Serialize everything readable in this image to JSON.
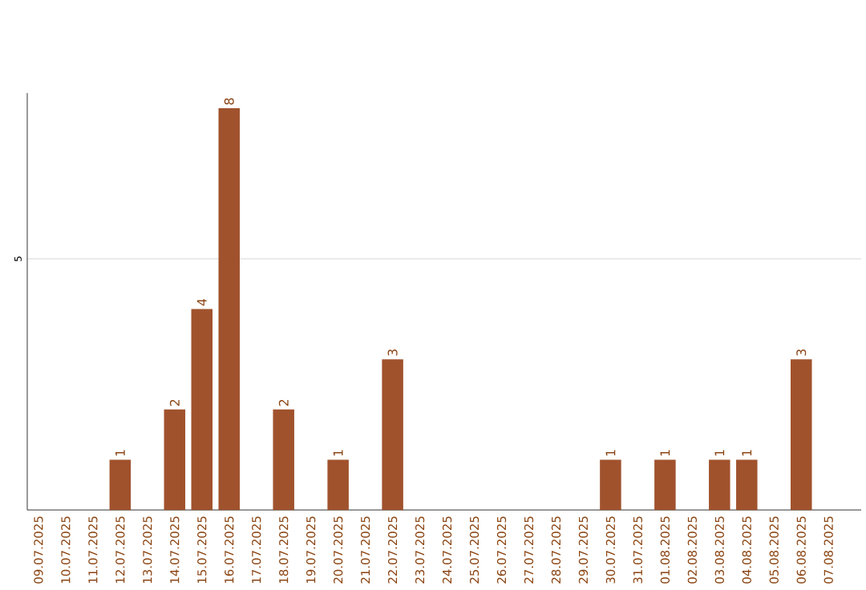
{
  "chart_data": {
    "type": "bar",
    "categories": [
      "09.07.2025",
      "10.07.2025",
      "11.07.2025",
      "12.07.2025",
      "13.07.2025",
      "14.07.2025",
      "15.07.2025",
      "16.07.2025",
      "17.07.2025",
      "18.07.2025",
      "19.07.2025",
      "20.07.2025",
      "21.07.2025",
      "22.07.2025",
      "23.07.2025",
      "24.07.2025",
      "25.07.2025",
      "26.07.2025",
      "27.07.2025",
      "28.07.2025",
      "29.07.2025",
      "30.07.2025",
      "31.07.2025",
      "01.08.2025",
      "02.08.2025",
      "03.08.2025",
      "04.08.2025",
      "05.08.2025",
      "06.08.2025",
      "07.08.2025"
    ],
    "values": [
      0,
      0,
      0,
      1,
      0,
      2,
      4,
      8,
      0,
      2,
      0,
      1,
      0,
      3,
      0,
      0,
      0,
      0,
      0,
      0,
      0,
      1,
      0,
      1,
      0,
      1,
      1,
      0,
      3,
      0
    ],
    "value_labels": [
      null,
      null,
      null,
      "1",
      null,
      "2",
      "4",
      "8",
      null,
      "2",
      null,
      "1",
      null,
      "3",
      null,
      null,
      null,
      null,
      null,
      null,
      null,
      "1",
      null,
      "1",
      null,
      "1",
      "1",
      null,
      "3",
      null
    ],
    "color": "#a0522d",
    "ylim": [
      0,
      8.3
    ],
    "yticks": [
      5
    ],
    "grid": "y"
  }
}
